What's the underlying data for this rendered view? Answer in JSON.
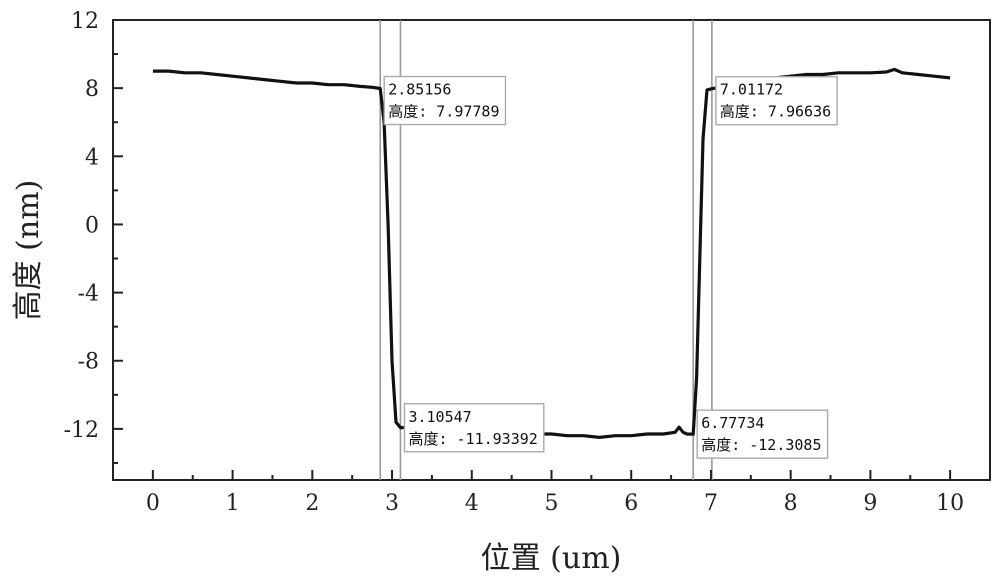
{
  "chart_data": {
    "type": "line",
    "xlabel": "位置 (um)",
    "ylabel": "高度 (nm)",
    "xlim": [
      -0.5,
      10.5
    ],
    "ylim": [
      -15,
      12
    ],
    "x_ticks": [
      0,
      1,
      2,
      3,
      4,
      5,
      6,
      7,
      8,
      9,
      10
    ],
    "y_ticks": [
      12,
      8,
      4,
      0,
      -4,
      -8,
      -12
    ],
    "grid": false,
    "series": [
      {
        "color": "#111111",
        "points": [
          [
            0.0,
            9.0
          ],
          [
            0.2,
            9.0
          ],
          [
            0.4,
            8.9
          ],
          [
            0.6,
            8.9
          ],
          [
            0.8,
            8.8
          ],
          [
            1.0,
            8.7
          ],
          [
            1.2,
            8.6
          ],
          [
            1.4,
            8.5
          ],
          [
            1.6,
            8.4
          ],
          [
            1.8,
            8.3
          ],
          [
            2.0,
            8.3
          ],
          [
            2.2,
            8.2
          ],
          [
            2.4,
            8.2
          ],
          [
            2.6,
            8.1
          ],
          [
            2.75,
            8.05
          ],
          [
            2.85156,
            7.97789
          ],
          [
            2.9,
            6.0
          ],
          [
            2.95,
            0.0
          ],
          [
            3.0,
            -8.0
          ],
          [
            3.05,
            -11.6
          ],
          [
            3.10547,
            -11.93392
          ],
          [
            3.2,
            -11.9
          ],
          [
            3.4,
            -12.0
          ],
          [
            3.6,
            -12.0
          ],
          [
            3.8,
            -12.1
          ],
          [
            4.0,
            -12.1
          ],
          [
            4.2,
            -12.2
          ],
          [
            4.4,
            -12.2
          ],
          [
            4.6,
            -12.2
          ],
          [
            4.8,
            -12.3
          ],
          [
            5.0,
            -12.3
          ],
          [
            5.2,
            -12.4
          ],
          [
            5.4,
            -12.4
          ],
          [
            5.6,
            -12.5
          ],
          [
            5.8,
            -12.4
          ],
          [
            6.0,
            -12.4
          ],
          [
            6.2,
            -12.3
          ],
          [
            6.4,
            -12.3
          ],
          [
            6.55,
            -12.2
          ],
          [
            6.6,
            -11.9
          ],
          [
            6.65,
            -12.2
          ],
          [
            6.7,
            -12.3
          ],
          [
            6.77734,
            -12.3085
          ],
          [
            6.82,
            -9.0
          ],
          [
            6.86,
            -2.0
          ],
          [
            6.9,
            5.0
          ],
          [
            6.95,
            7.9
          ],
          [
            7.01172,
            7.96636
          ],
          [
            7.2,
            8.1
          ],
          [
            7.4,
            8.2
          ],
          [
            7.6,
            8.4
          ],
          [
            7.8,
            8.6
          ],
          [
            8.0,
            8.7
          ],
          [
            8.2,
            8.8
          ],
          [
            8.4,
            8.8
          ],
          [
            8.6,
            8.9
          ],
          [
            8.8,
            8.9
          ],
          [
            9.0,
            8.9
          ],
          [
            9.2,
            8.95
          ],
          [
            9.3,
            9.1
          ],
          [
            9.4,
            8.9
          ],
          [
            9.6,
            8.8
          ],
          [
            9.8,
            8.7
          ],
          [
            10.0,
            8.6
          ]
        ]
      }
    ],
    "markers": [
      {
        "x": 2.85156,
        "y": 7.97789,
        "label_x": "2.85156",
        "label_y": "高度: 7.97789"
      },
      {
        "x": 3.10547,
        "y": -11.93392,
        "label_x": "3.10547",
        "label_y": "高度: -11.93392"
      },
      {
        "x": 6.77734,
        "y": -12.3085,
        "label_x": "6.77734",
        "label_y": "高度: -12.3085"
      },
      {
        "x": 7.01172,
        "y": 7.96636,
        "label_x": "7.01172",
        "label_y": "高度: 7.96636"
      }
    ]
  }
}
